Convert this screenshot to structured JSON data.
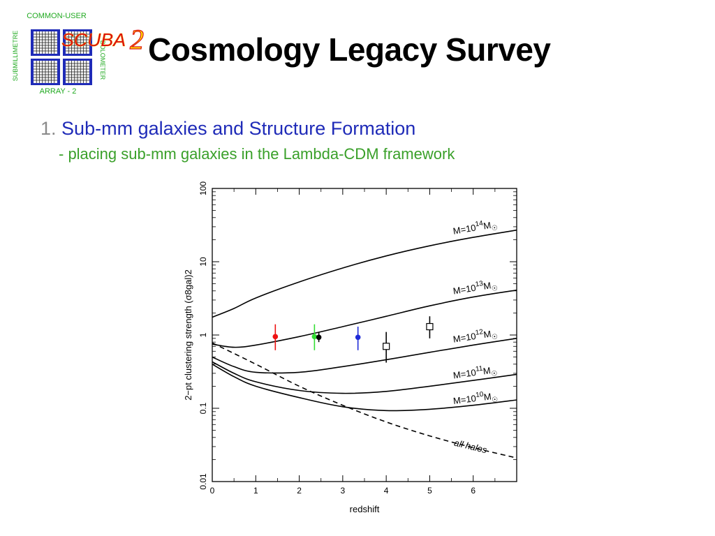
{
  "slide": {
    "title": "Cosmology Legacy Survey",
    "point_number": "1.",
    "point_text": "Sub-mm galaxies and Structure Formation",
    "subpoint_text": "- placing sub-mm galaxies in the Lambda-CDM framework"
  },
  "logo": {
    "top_text": "COMMON-USER",
    "left_text": "SUBMILLIMETRE",
    "right_text": "BOLOMETER",
    "bottom_text": "ARRAY - 2",
    "name": "SCUBA",
    "numeral": "2"
  },
  "colors": {
    "title": "#000000",
    "point_number": "#8a8a8a",
    "point_text": "#1f2bb8",
    "subpoint_text": "#3aa02a",
    "logo_green": "#22aa22",
    "logo_blue": "#1f2bb8",
    "logo_red": "#dd1111",
    "logo_yellow": "#ffee00"
  },
  "chart_data": {
    "type": "line",
    "title": "",
    "xlabel": "redshift",
    "ylabel": "2−pt clustering strength (σ8gal)2",
    "xscale": "linear",
    "yscale": "log",
    "xlim": [
      0,
      7
    ],
    "ylim": [
      0.01,
      100
    ],
    "xticks": [
      "0",
      "1",
      "2",
      "3",
      "4",
      "5",
      "6"
    ],
    "yticks": [
      "0.01",
      "0.1",
      "1",
      "10",
      "100"
    ],
    "series": [
      {
        "name": "M=10^14 M☉",
        "style": "solid",
        "x": [
          0,
          0.5,
          1,
          2,
          3,
          4,
          5,
          6,
          7
        ],
        "y": [
          1.75,
          2.3,
          3.2,
          5.3,
          8.2,
          12.0,
          16.5,
          21.5,
          27.0
        ]
      },
      {
        "name": "M=10^13 M☉",
        "style": "solid",
        "x": [
          0,
          0.5,
          1,
          2,
          3,
          4,
          5,
          6,
          7
        ],
        "y": [
          0.75,
          0.68,
          0.73,
          0.95,
          1.3,
          1.8,
          2.5,
          3.3,
          4.1
        ]
      },
      {
        "name": "M=10^12 M☉",
        "style": "solid",
        "x": [
          0,
          0.5,
          1,
          2,
          3,
          4,
          5,
          6,
          7
        ],
        "y": [
          0.5,
          0.37,
          0.31,
          0.31,
          0.37,
          0.46,
          0.58,
          0.73,
          0.9
        ]
      },
      {
        "name": "M=10^11 M☉",
        "style": "solid",
        "x": [
          0,
          0.5,
          1,
          2,
          3,
          4,
          5,
          6,
          7
        ],
        "y": [
          0.43,
          0.3,
          0.23,
          0.175,
          0.16,
          0.17,
          0.2,
          0.24,
          0.29
        ]
      },
      {
        "name": "M=10^10 M☉",
        "style": "solid",
        "x": [
          0,
          0.5,
          1,
          2,
          3,
          4,
          5,
          6,
          7
        ],
        "y": [
          0.4,
          0.27,
          0.2,
          0.14,
          0.105,
          0.093,
          0.097,
          0.11,
          0.13
        ]
      },
      {
        "name": "all halos",
        "style": "dashed",
        "x": [
          0,
          1,
          2,
          3,
          4,
          5,
          6,
          7
        ],
        "y": [
          0.78,
          0.4,
          0.2,
          0.11,
          0.065,
          0.042,
          0.029,
          0.021
        ]
      }
    ],
    "points": [
      {
        "x": 1.45,
        "y": 0.95,
        "yerr": [
          0.62,
          1.4
        ],
        "marker": "filled-circle",
        "color": "#ee1111"
      },
      {
        "x": 2.35,
        "y": 0.95,
        "yerr": [
          0.62,
          1.4
        ],
        "marker": "filled-circle",
        "color": "#33dd33"
      },
      {
        "x": 2.45,
        "y": 0.93,
        "yerr": [
          0.8,
          1.1
        ],
        "marker": "filled-circle",
        "color": "#000000"
      },
      {
        "x": 3.35,
        "y": 0.93,
        "yerr": [
          0.62,
          1.3
        ],
        "marker": "filled-circle",
        "color": "#1f2bd8"
      },
      {
        "x": 4.0,
        "y": 0.7,
        "yerr": [
          0.42,
          1.1
        ],
        "marker": "open-square",
        "color": "#000000"
      },
      {
        "x": 5.0,
        "y": 1.3,
        "yerr": [
          0.9,
          1.8
        ],
        "marker": "open-square",
        "color": "#000000"
      }
    ]
  }
}
